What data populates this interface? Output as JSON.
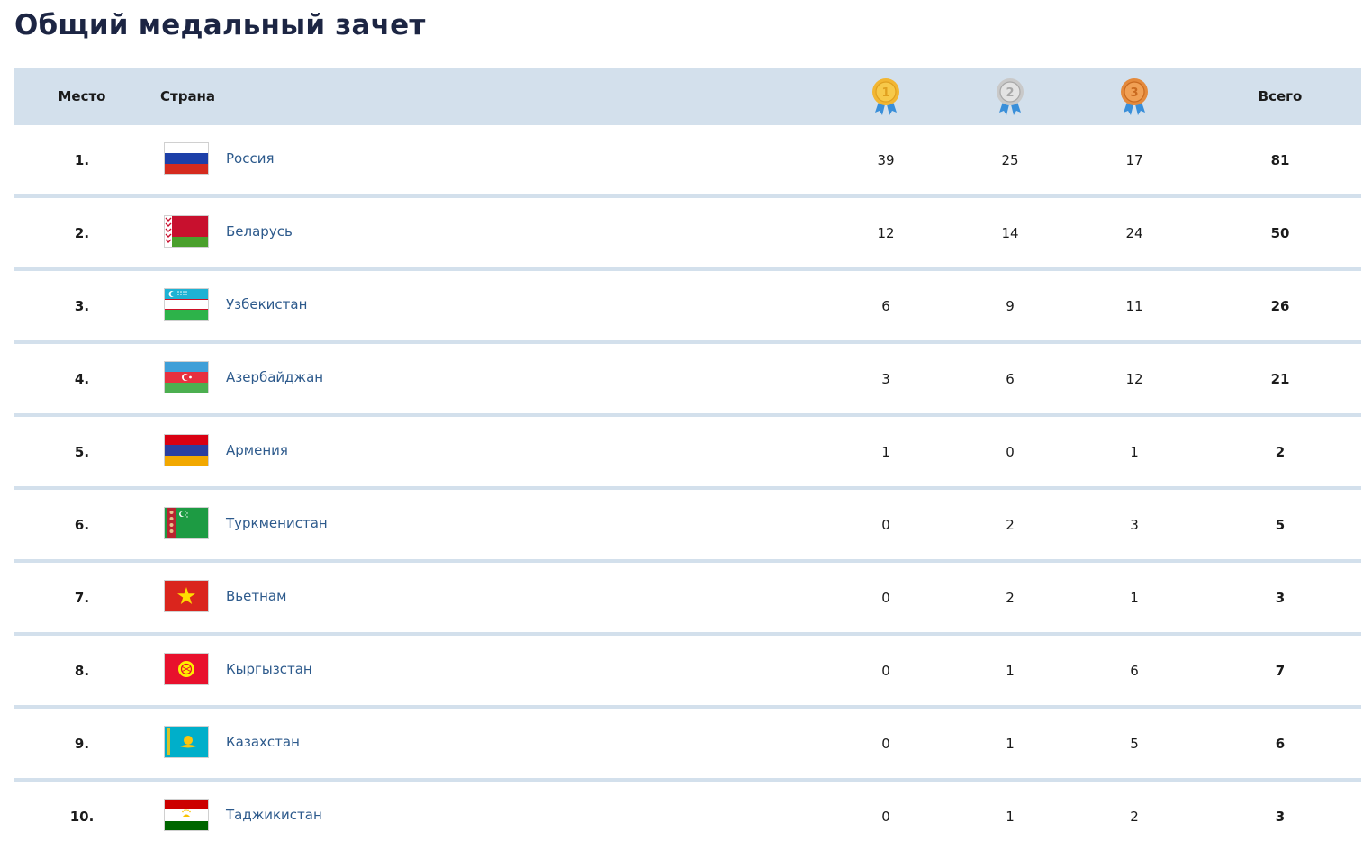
{
  "page": {
    "title": "Общий медальный зачет"
  },
  "table": {
    "headers": {
      "place": "Место",
      "country": "Страна",
      "total": "Всего",
      "gold_icon": "gold-medal-icon",
      "silver_icon": "silver-medal-icon",
      "bronze_icon": "bronze-medal-icon"
    },
    "colors": {
      "header_bg": "#d3e0ec",
      "link": "#2d5a8c",
      "gold": "#f2b632",
      "silver": "#c9c9c9",
      "bronze": "#e48a3c",
      "ribbon": "#3a8fd9"
    },
    "rows": [
      {
        "place": "1.",
        "country": "Россия",
        "flag_icon": "russia-flag-icon",
        "gold": "39",
        "silver": "25",
        "bronze": "17",
        "total": "81"
      },
      {
        "place": "2.",
        "country": "Беларусь",
        "flag_icon": "belarus-flag-icon",
        "gold": "12",
        "silver": "14",
        "bronze": "24",
        "total": "50"
      },
      {
        "place": "3.",
        "country": "Узбекистан",
        "flag_icon": "uzbekistan-flag-icon",
        "gold": "6",
        "silver": "9",
        "bronze": "11",
        "total": "26"
      },
      {
        "place": "4.",
        "country": "Азербайджан",
        "flag_icon": "azerbaijan-flag-icon",
        "gold": "3",
        "silver": "6",
        "bronze": "12",
        "total": "21"
      },
      {
        "place": "5.",
        "country": "Армения",
        "flag_icon": "armenia-flag-icon",
        "gold": "1",
        "silver": "0",
        "bronze": "1",
        "total": "2"
      },
      {
        "place": "6.",
        "country": "Туркменистан",
        "flag_icon": "turkmenistan-flag-icon",
        "gold": "0",
        "silver": "2",
        "bronze": "3",
        "total": "5"
      },
      {
        "place": "7.",
        "country": "Вьетнам",
        "flag_icon": "vietnam-flag-icon",
        "gold": "0",
        "silver": "2",
        "bronze": "1",
        "total": "3"
      },
      {
        "place": "8.",
        "country": "Кыргызстан",
        "flag_icon": "kyrgyzstan-flag-icon",
        "gold": "0",
        "silver": "1",
        "bronze": "6",
        "total": "7"
      },
      {
        "place": "9.",
        "country": "Казахстан",
        "flag_icon": "kazakhstan-flag-icon",
        "gold": "0",
        "silver": "1",
        "bronze": "5",
        "total": "6"
      },
      {
        "place": "10.",
        "country": "Таджикистан",
        "flag_icon": "tajikistan-flag-icon",
        "gold": "0",
        "silver": "1",
        "bronze": "2",
        "total": "3"
      }
    ]
  }
}
